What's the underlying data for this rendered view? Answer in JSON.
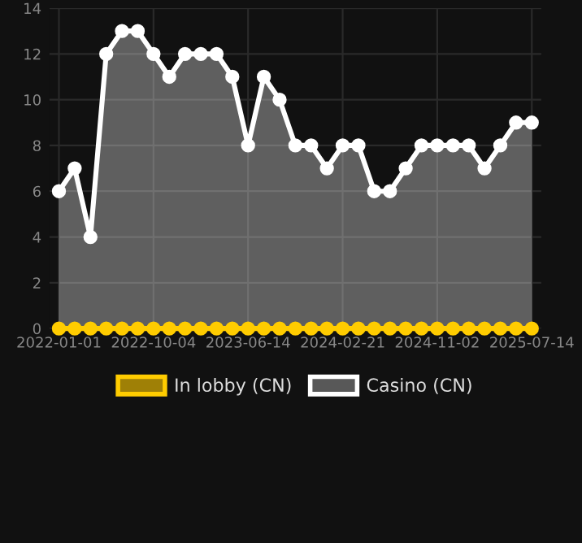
{
  "chart_data": {
    "type": "line",
    "categories": [
      "2022-01-01",
      null,
      null,
      null,
      null,
      null,
      "2022-10-04",
      null,
      null,
      null,
      null,
      null,
      "2023-06-14",
      null,
      null,
      null,
      null,
      null,
      "2024-02-21",
      null,
      null,
      null,
      null,
      null,
      "2024-11-02",
      null,
      null,
      null,
      null,
      null,
      "2025-07-14"
    ],
    "series": [
      {
        "name": "In lobby (CN)",
        "color": "#ffcc00",
        "values": [
          0,
          0,
          0,
          0,
          0,
          0,
          0,
          0,
          0,
          0,
          0,
          0,
          0,
          0,
          0,
          0,
          0,
          0,
          0,
          0,
          0,
          0,
          0,
          0,
          0,
          0,
          0,
          0,
          0,
          0,
          0
        ]
      },
      {
        "name": "Casino (CN)",
        "type": "area",
        "color": "#ffffff",
        "values": [
          6,
          7,
          4,
          12,
          13,
          13,
          12,
          11,
          12,
          12,
          12,
          11,
          8,
          11,
          10,
          8,
          8,
          7,
          8,
          8,
          6,
          6,
          7,
          8,
          8,
          8,
          8,
          7,
          8,
          9,
          9
        ]
      }
    ],
    "ylim": [
      0,
      14
    ],
    "yticks": [
      0,
      2,
      4,
      6,
      8,
      10,
      12,
      14
    ],
    "grid": true,
    "legend": "bottom",
    "marker": "circle",
    "line_style": "solid"
  }
}
